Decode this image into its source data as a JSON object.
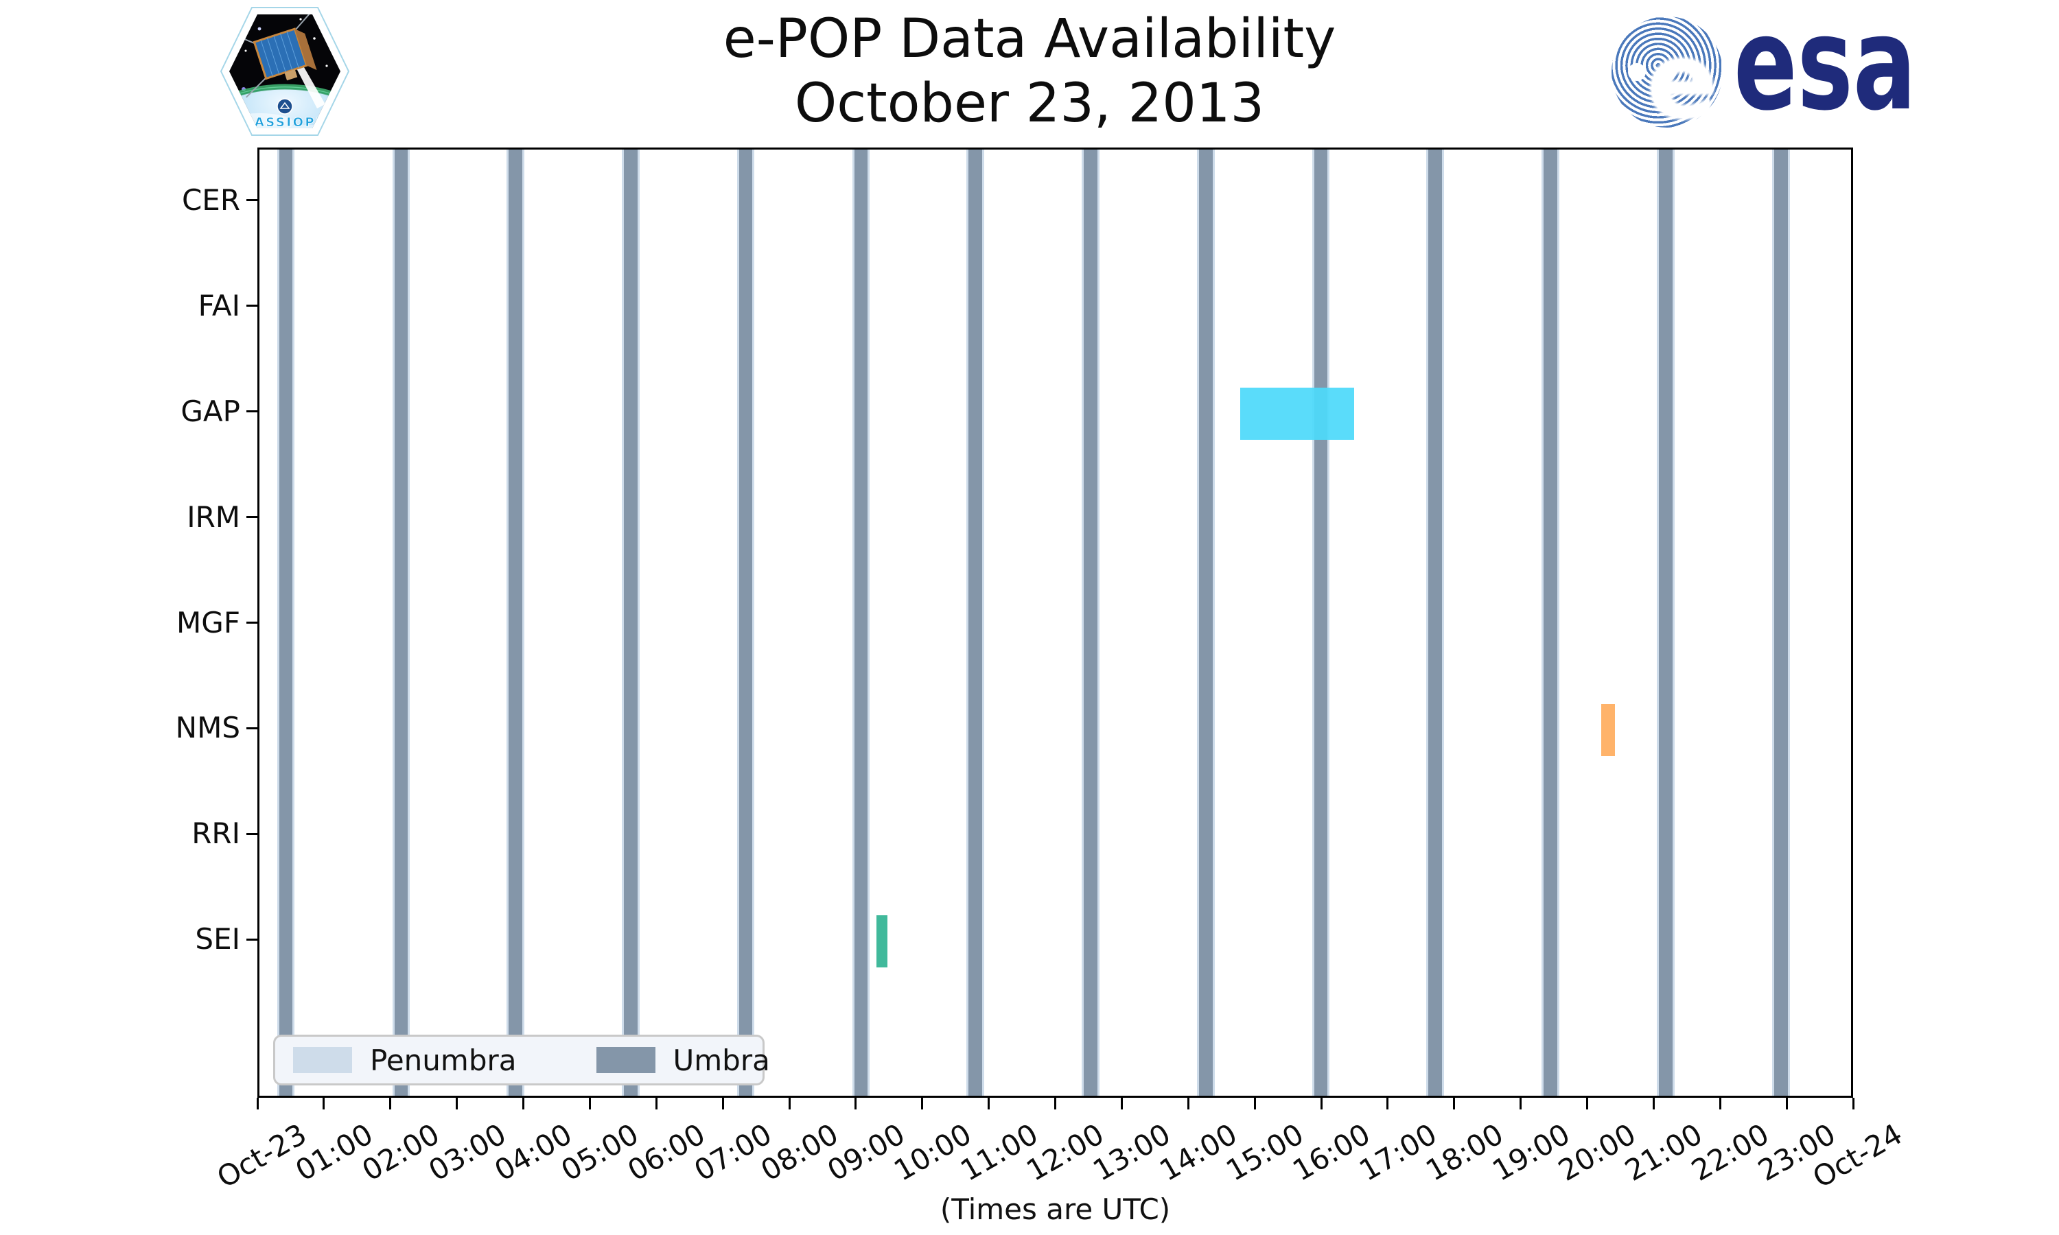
{
  "figure": {
    "title_line1": "e-POP Data Availability",
    "title_line2": "October 23, 2013",
    "footer_note": "(Times are UTC)",
    "cassiope_patch_text": "CASSIOPE",
    "esa_logo_text": "esa"
  },
  "chart_data": {
    "type": "timeline",
    "title": "e-POP Data Availability",
    "subtitle": "October 23, 2013",
    "xlabel": "(Times are UTC)",
    "x_range_hours": [
      0,
      24
    ],
    "x_tick_labels": [
      "Oct-23",
      "01:00",
      "02:00",
      "03:00",
      "04:00",
      "05:00",
      "06:00",
      "07:00",
      "08:00",
      "09:00",
      "10:00",
      "11:00",
      "12:00",
      "13:00",
      "14:00",
      "15:00",
      "16:00",
      "17:00",
      "18:00",
      "19:00",
      "20:00",
      "21:00",
      "22:00",
      "23:00",
      "Oct-24"
    ],
    "instruments": [
      "CER",
      "FAI",
      "GAP",
      "IRM",
      "MGF",
      "NMS",
      "RRI",
      "SEI"
    ],
    "availability_bars": [
      {
        "instrument": "GAP",
        "start": "14:45",
        "end": "16:28",
        "color": "#4dd9fa"
      },
      {
        "instrument": "NMS",
        "start": "20:11",
        "end": "20:23",
        "color": "#ffad5f"
      },
      {
        "instrument": "SEI",
        "start": "09:17",
        "end": "09:27",
        "color": "#33b493"
      }
    ],
    "umbra_passes": [
      {
        "start": "00:18",
        "end": "00:30"
      },
      {
        "start": "02:02",
        "end": "02:14"
      },
      {
        "start": "03:45",
        "end": "03:57"
      },
      {
        "start": "05:29",
        "end": "05:41"
      },
      {
        "start": "07:13",
        "end": "07:25"
      },
      {
        "start": "08:57",
        "end": "09:09"
      },
      {
        "start": "10:40",
        "end": "10:52"
      },
      {
        "start": "12:24",
        "end": "12:36"
      },
      {
        "start": "14:08",
        "end": "14:20"
      },
      {
        "start": "15:52",
        "end": "16:04"
      },
      {
        "start": "17:35",
        "end": "17:47"
      },
      {
        "start": "19:19",
        "end": "19:31"
      },
      {
        "start": "21:03",
        "end": "21:15"
      },
      {
        "start": "22:47",
        "end": "22:59"
      }
    ],
    "legend": [
      {
        "label": "Penumbra",
        "color": "#cedcea"
      },
      {
        "label": "Umbra",
        "color": "#8496a9"
      }
    ],
    "colors": {
      "umbra": "#8496a9",
      "penumbra": "#cedcea",
      "axis": "#000000",
      "esa_blue": "#1f2b7b",
      "esa_globe_blue": "#4a78bb"
    },
    "grid": false,
    "legend_position": "lower-left inside plot"
  }
}
